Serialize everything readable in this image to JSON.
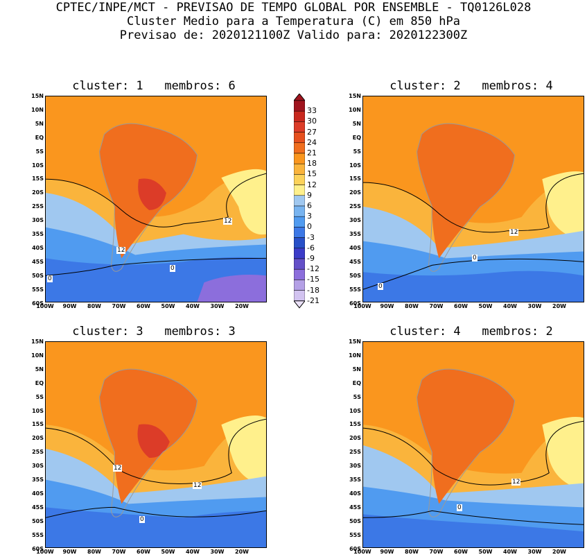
{
  "header": {
    "line1": "CPTEC/INPE/MCT - PREVISAO DE TEMPO GLOBAL POR ENSEMBLE - TQ0126L028",
    "line2": "Cluster Medio para a Temperatura (C) em 850 hPa",
    "line3": "Previsao de: 2020121100Z   Valido para: 2020122300Z"
  },
  "panels": [
    {
      "title": "cluster: 1   membros: 6",
      "labels": [
        "12",
        "12",
        "0",
        "0"
      ]
    },
    {
      "title": "cluster: 2   membros: 4",
      "labels": [
        "12",
        "0",
        "0"
      ]
    },
    {
      "title": "cluster: 3   membros: 3",
      "labels": [
        "12",
        "12",
        "0"
      ]
    },
    {
      "title": "cluster: 4   membros: 2",
      "labels": [
        "12",
        "0"
      ]
    }
  ],
  "axes": {
    "y": [
      "15N",
      "10N",
      "5N",
      "EQ",
      "5S",
      "10S",
      "15S",
      "20S",
      "25S",
      "30S",
      "35S",
      "40S",
      "45S",
      "50S",
      "55S",
      "60S"
    ],
    "x": [
      "100W",
      "90W",
      "80W",
      "70W",
      "60W",
      "50W",
      "40W",
      "30W",
      "20W"
    ]
  },
  "colorbar": {
    "levels": [
      "33",
      "30",
      "27",
      "24",
      "21",
      "18",
      "15",
      "12",
      "9",
      "6",
      "3",
      "0",
      "-3",
      "-6",
      "-9",
      "-12",
      "-15",
      "-18",
      "-21"
    ],
    "colors": [
      "#a0141e",
      "#c8281e",
      "#dc3c28",
      "#e6501e",
      "#f06e1e",
      "#fa961e",
      "#fab43c",
      "#fcd25a",
      "#fff08c",
      "#a0c8f0",
      "#78b4f0",
      "#509bf0",
      "#3c78e6",
      "#2850c8",
      "#3c3cc8",
      "#6450c8",
      "#8c6edc",
      "#b4a0e6",
      "#d2c3f0"
    ]
  }
}
